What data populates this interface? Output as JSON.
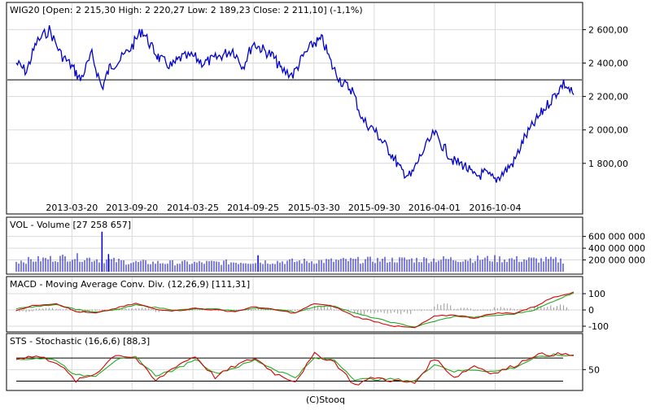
{
  "footer": {
    "credit": "(C)Stooq"
  },
  "colors": {
    "price": "#0000cc",
    "volume": "#0000cc",
    "macd": "#d40000",
    "signal": "#22aa22",
    "histogram": "#999999",
    "grid": "#d9d9d9",
    "reference": "#000000"
  },
  "chart_data": [
    {
      "type": "line",
      "title": "WIG20 [Open: 2 215,30  High: 2 220,27  Low: 2 189,23  Close: 2 211,10] (-1,1%)",
      "x_tick_labels": [
        "2013-03-20",
        "2013-09-20",
        "2014-03-25",
        "2014-09-25",
        "2015-03-30",
        "2015-09-30",
        "2016-04-01",
        "2016-10-04"
      ],
      "y_tick_labels": [
        "2 600,00",
        "2 400,00",
        "2 200,00",
        "2 000,00",
        "1 800,00"
      ],
      "y_ticks": [
        2600,
        2400,
        2200,
        2000,
        1800
      ],
      "ylim": [
        1580,
        2680
      ],
      "reference_line": 2300,
      "grid": true,
      "series": [
        {
          "x": [
            "2012-10-01",
            "2012-11-01",
            "2012-12-01",
            "2013-01-10",
            "2013-02-15",
            "2013-03-20",
            "2013-04-15",
            "2013-05-20",
            "2013-06-20",
            "2013-07-15",
            "2013-08-15",
            "2013-09-20",
            "2013-10-20",
            "2013-11-20",
            "2013-12-15",
            "2014-01-20",
            "2014-02-15",
            "2014-03-25",
            "2014-04-25",
            "2014-05-25",
            "2014-06-25",
            "2014-07-25",
            "2014-08-25",
            "2014-09-25",
            "2014-10-25",
            "2014-11-25",
            "2014-12-20",
            "2015-01-25",
            "2015-02-25",
            "2015-03-30",
            "2015-04-25",
            "2015-05-25",
            "2015-06-25",
            "2015-07-25",
            "2015-08-25",
            "2015-09-30",
            "2015-10-25",
            "2015-11-25",
            "2015-12-20",
            "2016-01-20",
            "2016-02-20",
            "2016-04-01",
            "2016-05-01",
            "2016-06-01",
            "2016-07-01",
            "2016-08-01",
            "2016-09-01",
            "2016-10-04",
            "2016-11-01",
            "2016-12-01",
            "2017-01-01",
            "2017-02-01",
            "2017-03-01",
            "2017-04-01",
            "2017-05-01",
            "2017-06-01"
          ],
          "values": [
            2400,
            2350,
            2520,
            2600,
            2450,
            2380,
            2300,
            2450,
            2250,
            2380,
            2420,
            2500,
            2600,
            2490,
            2420,
            2380,
            2430,
            2440,
            2400,
            2420,
            2450,
            2480,
            2380,
            2520,
            2480,
            2440,
            2360,
            2330,
            2440,
            2520,
            2540,
            2380,
            2280,
            2240,
            2060,
            2000,
            1930,
            1850,
            1760,
            1720,
            1850,
            1980,
            1890,
            1810,
            1790,
            1720,
            1740,
            1700,
            1750,
            1810,
            1950,
            2040,
            2120,
            2200,
            2280,
            2210
          ]
        }
      ]
    },
    {
      "type": "bar",
      "title": "VOL - Volume [27 258 657]",
      "y_tick_labels": [
        "600 000 000",
        "400 000 000",
        "200 000 000"
      ],
      "y_ticks": [
        600000000,
        400000000,
        200000000
      ],
      "ylim": [
        0,
        720000000
      ],
      "x": [
        "2012-10-01",
        "2013-03-20",
        "2013-09-20",
        "2014-03-25",
        "2014-09-25",
        "2015-03-30",
        "2015-09-30",
        "2016-04-01",
        "2016-10-04",
        "2017-06-01"
      ],
      "values": [
        180000000,
        250000000,
        160000000,
        150000000,
        170000000,
        180000000,
        200000000,
        210000000,
        220000000,
        190000000
      ],
      "spikes": [
        {
          "x": "2013-06-20",
          "value": 680000000
        },
        {
          "x": "2013-07-10",
          "value": 300000000
        },
        {
          "x": "2014-10-10",
          "value": 280000000
        }
      ]
    },
    {
      "type": "line",
      "title": "MACD - Moving Average Conv. Div. (12,26,9) [111,31]",
      "y_tick_labels": [
        "100",
        "0",
        "-100"
      ],
      "y_ticks": [
        100,
        0,
        -100
      ],
      "ylim": [
        -125,
        125
      ],
      "reference_line": 0,
      "x": [
        "2012-10-01",
        "2012-12-01",
        "2013-02-01",
        "2013-04-01",
        "2013-06-01",
        "2013-08-01",
        "2013-10-01",
        "2013-12-01",
        "2014-02-01",
        "2014-04-01",
        "2014-06-01",
        "2014-08-01",
        "2014-10-01",
        "2014-12-01",
        "2015-02-01",
        "2015-04-01",
        "2015-06-01",
        "2015-08-01",
        "2015-10-01",
        "2015-12-01",
        "2016-02-01",
        "2016-04-01",
        "2016-06-01",
        "2016-08-01",
        "2016-10-01",
        "2016-12-01",
        "2017-02-01",
        "2017-04-01",
        "2017-06-01"
      ],
      "series": [
        {
          "values": [
            0,
            30,
            40,
            -10,
            -20,
            10,
            40,
            5,
            -5,
            10,
            0,
            -10,
            20,
            0,
            -20,
            40,
            20,
            -40,
            -70,
            -100,
            -110,
            -40,
            -30,
            -50,
            -20,
            -20,
            20,
            80,
            110
          ]
        },
        {
          "values": [
            10,
            20,
            35,
            5,
            -15,
            0,
            30,
            15,
            0,
            5,
            5,
            -5,
            10,
            5,
            -15,
            20,
            25,
            -20,
            -50,
            -80,
            -105,
            -70,
            -40,
            -45,
            -35,
            -25,
            0,
            55,
            105
          ]
        }
      ]
    },
    {
      "type": "line",
      "title": "STS - Stochastic (16,6,6) [88,3]",
      "y_tick_labels": [
        "50"
      ],
      "y_ticks": [
        50
      ],
      "ylim": [
        0,
        110
      ],
      "reference_lines": [
        80,
        20
      ],
      "x": [
        "2012-10-01",
        "2012-12-01",
        "2013-02-01",
        "2013-04-01",
        "2013-06-01",
        "2013-08-01",
        "2013-10-01",
        "2013-12-01",
        "2014-02-01",
        "2014-04-01",
        "2014-06-01",
        "2014-08-01",
        "2014-10-01",
        "2014-12-01",
        "2015-02-01",
        "2015-04-01",
        "2015-06-01",
        "2015-08-01",
        "2015-10-01",
        "2015-12-01",
        "2016-02-01",
        "2016-04-01",
        "2016-06-01",
        "2016-08-01",
        "2016-10-01",
        "2016-12-01",
        "2017-02-01",
        "2017-04-01",
        "2017-06-01"
      ],
      "series": [
        {
          "values": [
            80,
            85,
            70,
            20,
            40,
            90,
            80,
            20,
            60,
            85,
            30,
            60,
            80,
            40,
            20,
            90,
            70,
            10,
            30,
            20,
            15,
            80,
            30,
            60,
            40,
            60,
            88,
            90,
            88
          ]
        },
        {
          "values": [
            75,
            80,
            75,
            35,
            35,
            75,
            82,
            35,
            50,
            78,
            40,
            55,
            75,
            50,
            30,
            80,
            75,
            25,
            25,
            25,
            20,
            65,
            45,
            50,
            45,
            55,
            80,
            88,
            86
          ]
        }
      ]
    }
  ]
}
